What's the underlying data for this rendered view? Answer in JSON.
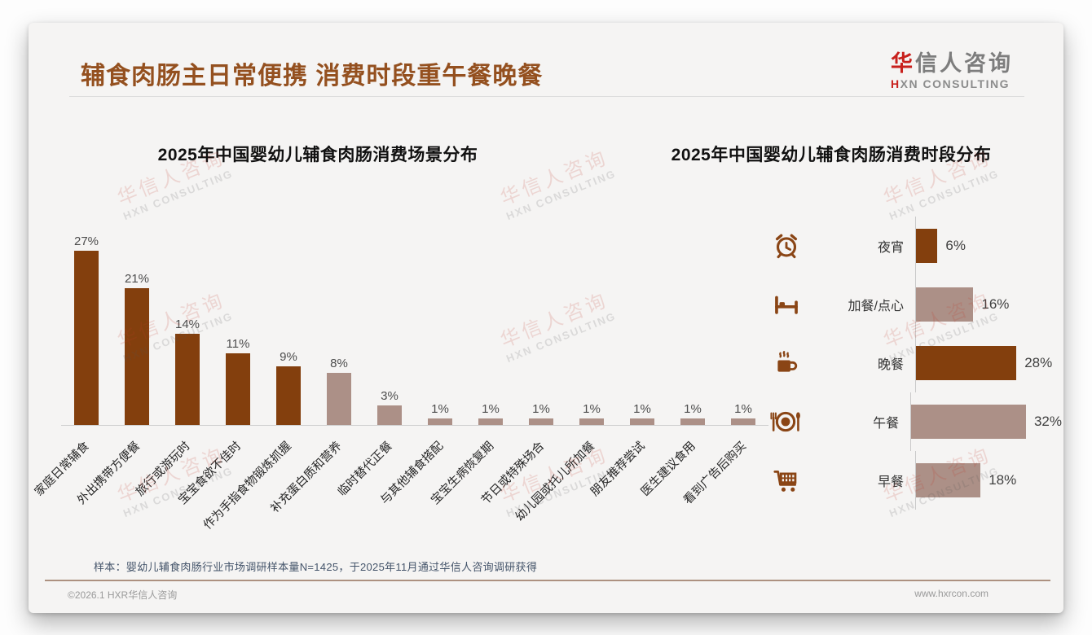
{
  "page": {
    "title": "辅食肉肠主日常便携 消费时段重午餐晚餐",
    "logo": {
      "cn_first": "华",
      "cn_rest": "信人咨询",
      "en_first": "H",
      "en_rest": "XN CONSULTING"
    },
    "watermark": {
      "cn": "华信人咨询",
      "en": "HXN CONSULTING"
    },
    "footnote": "样本：婴幼儿辅食肉肠行业市场调研样本量N=1425，于2025年11月通过华信人咨询调研获得",
    "footer": {
      "left": "©2026.1 HXR华信人咨询",
      "right": "www.hxrcon.com"
    }
  },
  "colors": {
    "dark": "#833f0d",
    "light": "#ac9087",
    "title": "#94501f",
    "accent_red": "#c8201c",
    "icon": "#8a4515"
  },
  "chart_data": [
    {
      "type": "bar",
      "orientation": "vertical",
      "title": "2025年中国婴幼儿辅食肉肠消费场景分布",
      "categories": [
        "家庭日常辅食",
        "外出携带方便餐",
        "旅行或游玩时",
        "宝宝食欲不佳时",
        "作为手指食物锻炼抓握",
        "补充蛋白质和营养",
        "临时替代正餐",
        "与其他辅食搭配",
        "宝宝生病恢复期",
        "节日或特殊场合",
        "幼儿园或托儿所加餐",
        "朋友推荐尝试",
        "医生建议食用",
        "看到广告后购买"
      ],
      "values": [
        27,
        21,
        14,
        11,
        9,
        8,
        3,
        1,
        1,
        1,
        1,
        1,
        1,
        1
      ],
      "bar_colors": [
        "dark",
        "dark",
        "dark",
        "dark",
        "dark",
        "light",
        "light",
        "light",
        "light",
        "light",
        "light",
        "light",
        "light",
        "light"
      ],
      "unit": "%",
      "ylim": [
        0,
        30
      ],
      "grid": false,
      "value_labels": true,
      "legend": false
    },
    {
      "type": "bar",
      "orientation": "horizontal",
      "title": "2025年中国婴幼儿辅食肉肠消费时段分布",
      "categories": [
        "夜宵",
        "加餐/点心",
        "晚餐",
        "午餐",
        "早餐"
      ],
      "values": [
        6,
        16,
        28,
        32,
        18
      ],
      "bar_colors": [
        "dark",
        "light",
        "dark",
        "light",
        "light"
      ],
      "icons": [
        "alarm-clock-icon",
        "bed-icon",
        "coffee-cup-icon",
        "plate-cutlery-icon",
        "shopping-cart-icon"
      ],
      "unit": "%",
      "xlim": [
        0,
        35
      ],
      "grid": false,
      "value_labels": true,
      "legend": false
    }
  ]
}
